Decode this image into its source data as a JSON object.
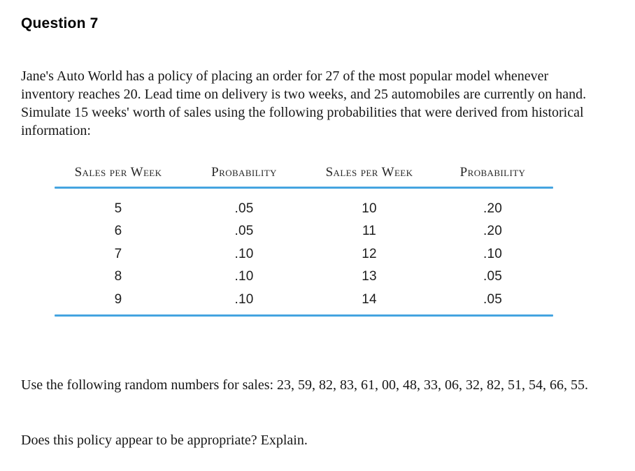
{
  "page": {
    "title": "Question 7",
    "intro_paragraph": "Jane's Auto World has a policy of placing an order for 27 of the most popular model whenever inventory reaches 20. Lead time on delivery is two weeks, and 25 automobiles are currently on hand. Simulate 15 weeks' worth of sales using the following probabilities that were derived from historical information:",
    "random_numbers_paragraph": "Use the following random numbers for sales: 23, 59, 82, 83, 61, 00, 48, 33, 06, 32, 82, 51, 54, 66, 55.",
    "closing_paragraph": "Does this policy appear to be appropriate? Explain."
  },
  "table": {
    "rule_color": "#45a4e0",
    "headers": [
      "Sales per Week",
      "Probability",
      "Sales per Week",
      "Probability"
    ],
    "rows": [
      [
        "5",
        ".05",
        "10",
        ".20"
      ],
      [
        "6",
        ".05",
        "11",
        ".20"
      ],
      [
        "7",
        ".10",
        "12",
        ".10"
      ],
      [
        "8",
        ".10",
        "13",
        ".05"
      ],
      [
        "9",
        ".10",
        "14",
        ".05"
      ]
    ]
  }
}
